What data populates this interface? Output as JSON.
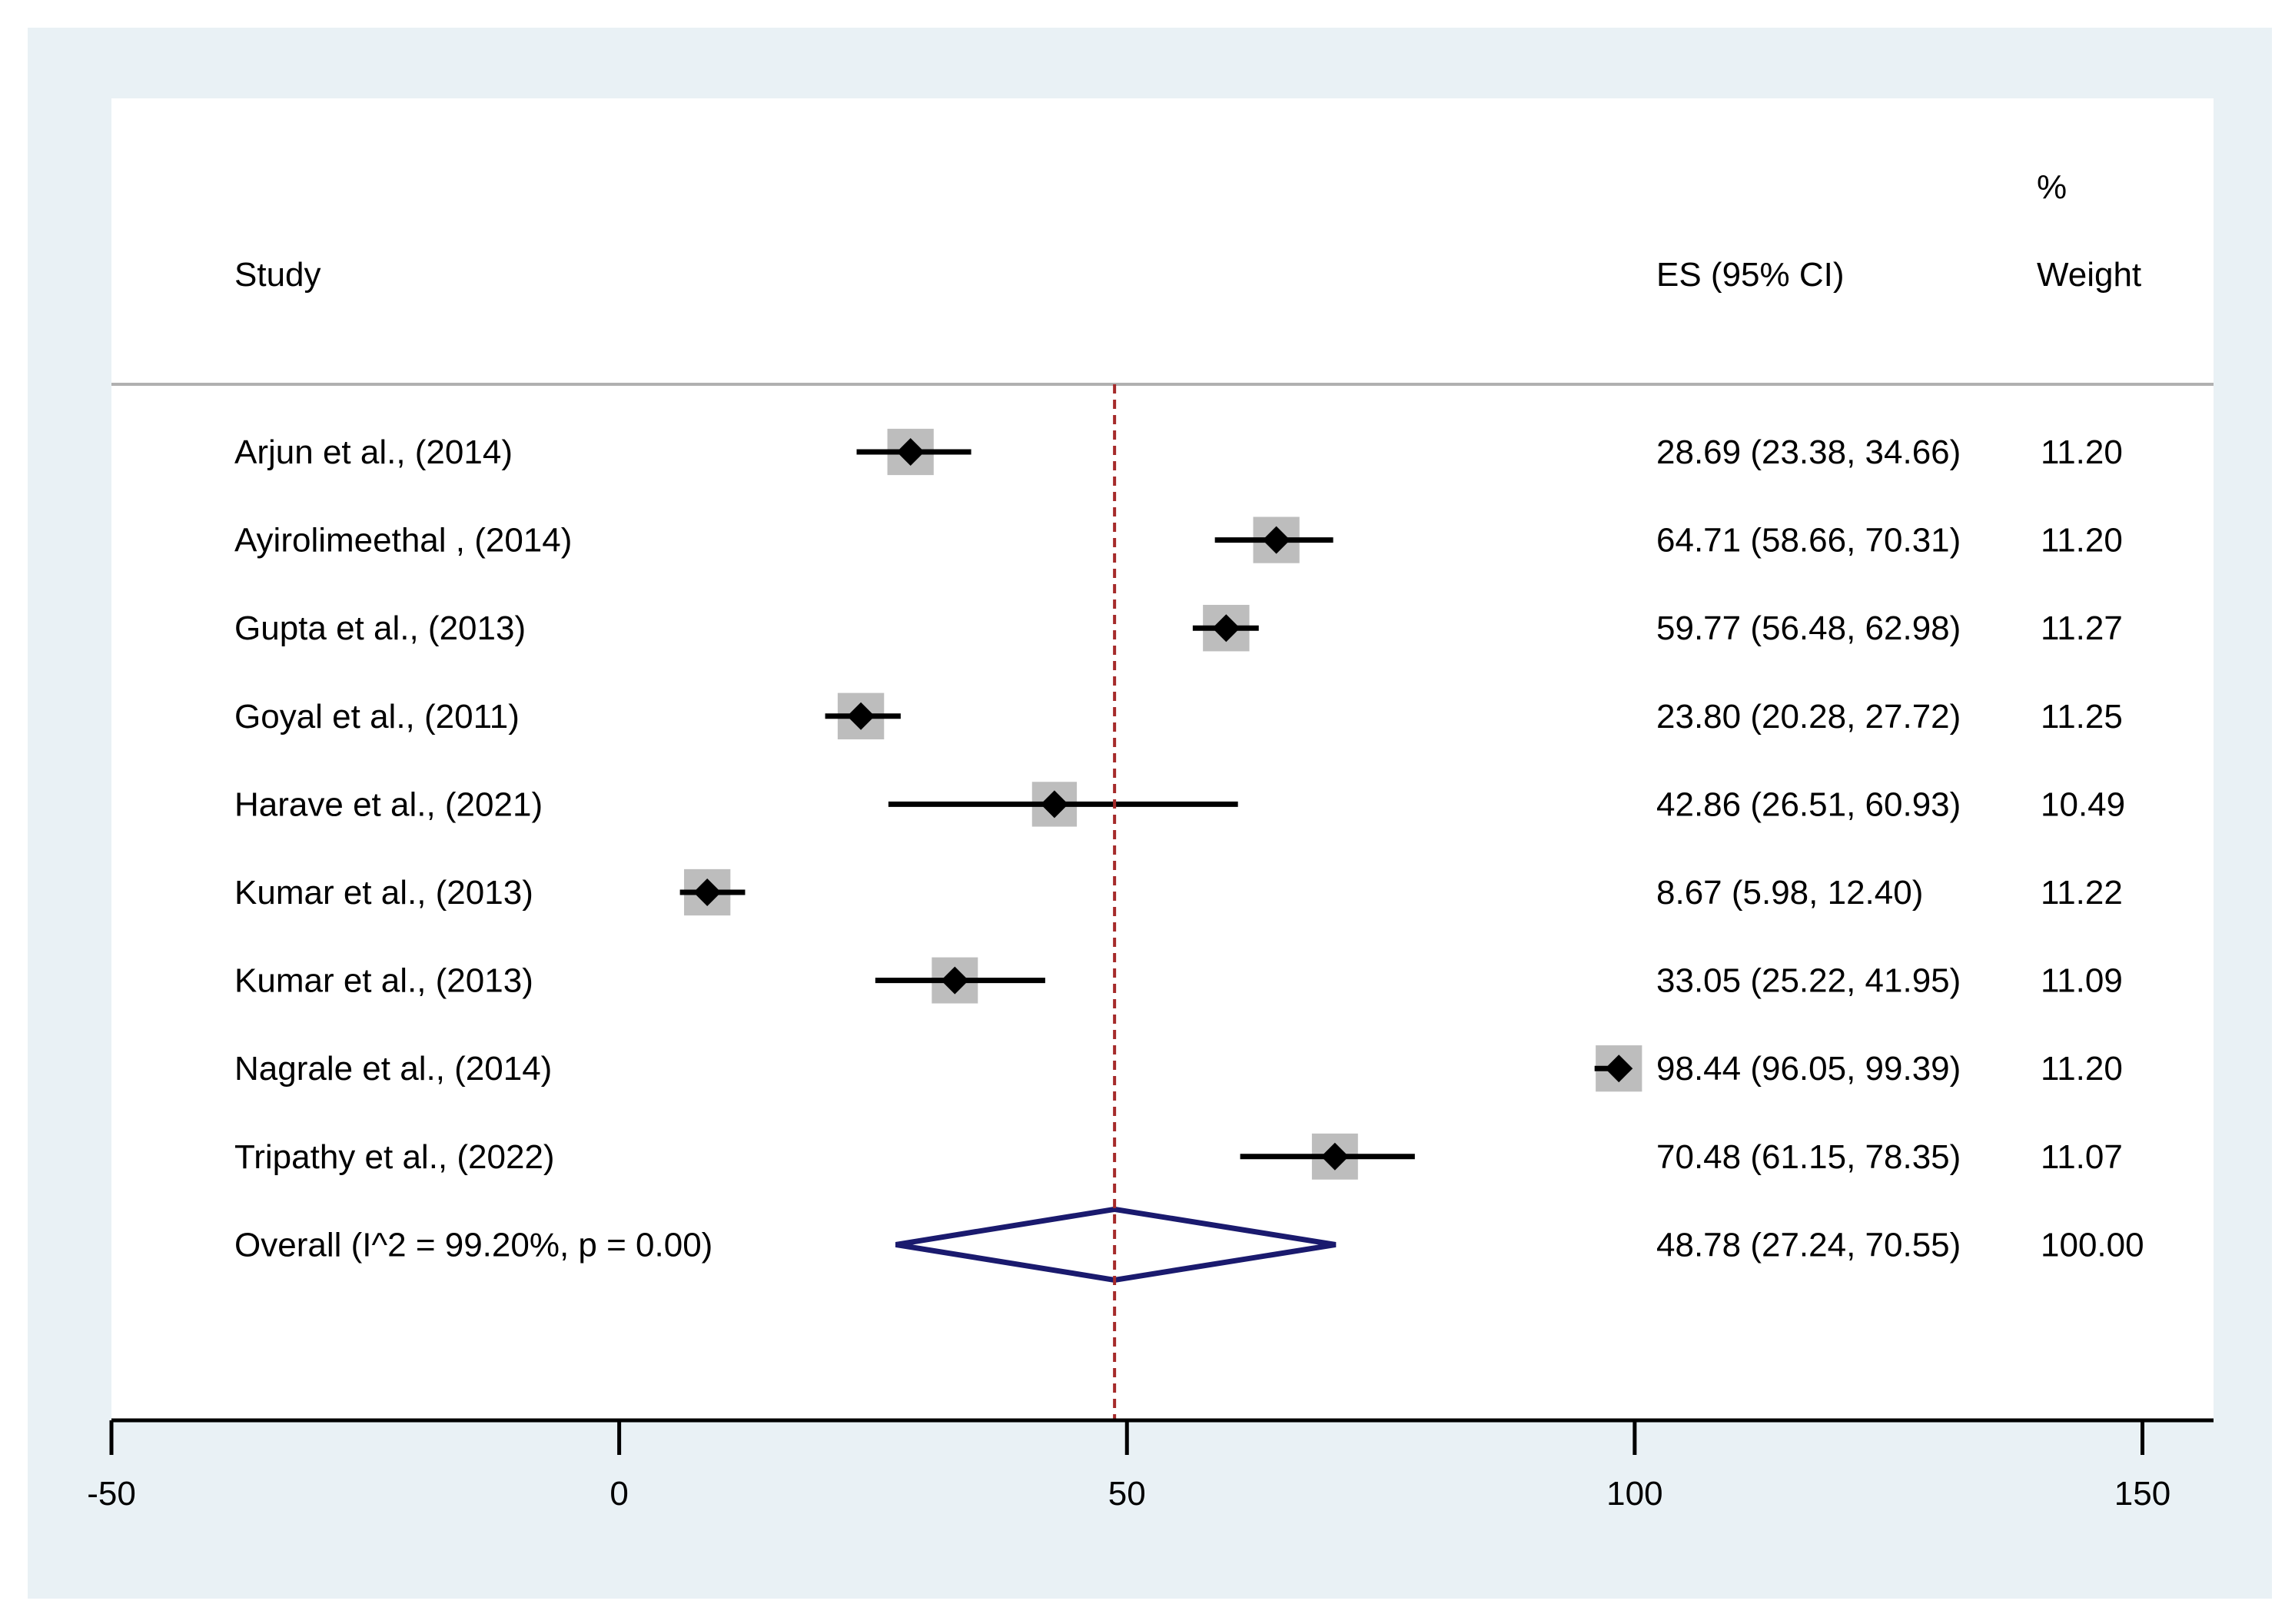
{
  "chart_data": {
    "type": "forest",
    "headers": {
      "study": "Study",
      "es": "ES (95% CI)",
      "weight_top": "%",
      "weight_bottom": "Weight"
    },
    "studies": [
      {
        "label": "Arjun et al., (2014)",
        "es": 28.69,
        "lo": 23.38,
        "hi": 34.66,
        "es_text": "28.69 (23.38, 34.66)",
        "weight": 11.2,
        "weight_text": "11.20"
      },
      {
        "label": "Ayirolimeethal , (2014)",
        "es": 64.71,
        "lo": 58.66,
        "hi": 70.31,
        "es_text": "64.71 (58.66, 70.31)",
        "weight": 11.2,
        "weight_text": "11.20"
      },
      {
        "label": "Gupta  et al., (2013)",
        "es": 59.77,
        "lo": 56.48,
        "hi": 62.98,
        "es_text": "59.77 (56.48, 62.98)",
        "weight": 11.27,
        "weight_text": "11.27"
      },
      {
        "label": "Goyal  et al., (2011)",
        "es": 23.8,
        "lo": 20.28,
        "hi": 27.72,
        "es_text": "23.80 (20.28, 27.72)",
        "weight": 11.25,
        "weight_text": "11.25"
      },
      {
        "label": "Harave et al., (2021)",
        "es": 42.86,
        "lo": 26.51,
        "hi": 60.93,
        "es_text": "42.86 (26.51, 60.93)",
        "weight": 10.49,
        "weight_text": "10.49"
      },
      {
        "label": "Kumar et al., (2013)",
        "es": 8.67,
        "lo": 5.98,
        "hi": 12.4,
        "es_text": "8.67 (5.98, 12.40)",
        "weight": 11.22,
        "weight_text": "11.22"
      },
      {
        "label": "Kumar  et al., (2013)",
        "es": 33.05,
        "lo": 25.22,
        "hi": 41.95,
        "es_text": "33.05 (25.22, 41.95)",
        "weight": 11.09,
        "weight_text": "11.09"
      },
      {
        "label": "Nagrale et al., (2014)",
        "es": 98.44,
        "lo": 96.05,
        "hi": 99.39,
        "es_text": "98.44 (96.05, 99.39)",
        "weight": 11.2,
        "weight_text": "11.20"
      },
      {
        "label": "Tripathy et al., (2022)",
        "es": 70.48,
        "lo": 61.15,
        "hi": 78.35,
        "es_text": "70.48 (61.15, 78.35)",
        "weight": 11.07,
        "weight_text": "11.07"
      }
    ],
    "overall": {
      "label": "Overall  (I^2 = 99.20%, p = 0.00)",
      "es": 48.78,
      "lo": 27.24,
      "hi": 70.55,
      "es_text": "48.78 (27.24, 70.55)",
      "weight": 100.0,
      "weight_text": "100.00"
    },
    "xaxis": {
      "ticks": [
        -50,
        0,
        50,
        100,
        150
      ],
      "tick_labels": [
        "-50",
        "0",
        "50",
        "100",
        "150"
      ],
      "xlim": [
        -50,
        157
      ]
    },
    "colors": {
      "outer_background": "#e9f1f5",
      "plot_background": "#ffffff",
      "marker": "#000000",
      "weight_box": "#bdbdbd",
      "reference_line": "#a52a2a",
      "overall_diamond": "#1a1a6e",
      "header_rule": "#b0b0b0"
    }
  }
}
